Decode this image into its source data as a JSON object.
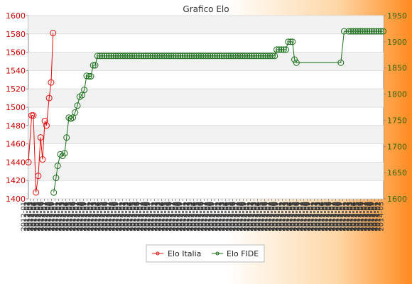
{
  "chart_data": {
    "type": "line",
    "title": "Grafico Elo",
    "legend_position": "bottom",
    "grid": true,
    "colors": {
      "italia": "#e01010",
      "fide": "#1a6e1a",
      "axis_left": "#cc0000",
      "axis_right": "#336600"
    },
    "y_left": {
      "min": 1400,
      "max": 1600,
      "ticks": [
        "1400",
        "1420",
        "1440",
        "1460",
        "1480",
        "1500",
        "1520",
        "1540",
        "1560",
        "1580",
        "1600"
      ]
    },
    "y_right": {
      "min": 1600,
      "max": 1950,
      "ticks": [
        "1600",
        "1650",
        "1700",
        "1750",
        "1800",
        "1850",
        "1900",
        "1950"
      ]
    },
    "x_tick_count": 100,
    "series": [
      {
        "name": "Elo Italia",
        "axis": "left",
        "points": [
          [
            0,
            1440
          ],
          [
            1,
            1491
          ],
          [
            1.5,
            1491
          ],
          [
            2.3,
            1407
          ],
          [
            3,
            1425
          ],
          [
            3.7,
            1467
          ],
          [
            4.3,
            1443
          ],
          [
            5,
            1485
          ],
          [
            5.5,
            1480
          ],
          [
            6.3,
            1510
          ],
          [
            6.9,
            1527
          ],
          [
            7.5,
            1581
          ]
        ]
      },
      {
        "name": "Elo FIDE",
        "axis": "right",
        "points": [
          [
            7.7,
            1612
          ],
          [
            8.4,
            1640
          ],
          [
            8.9,
            1663
          ],
          [
            9.7,
            1685
          ],
          [
            10.4,
            1682
          ],
          [
            11,
            1687
          ],
          [
            11.6,
            1717
          ],
          [
            12.3,
            1755
          ],
          [
            12.9,
            1753
          ],
          [
            13.5,
            1755
          ],
          [
            14.2,
            1765
          ],
          [
            14.9,
            1778
          ],
          [
            15.6,
            1795
          ],
          [
            16.3,
            1798
          ],
          [
            17,
            1808
          ],
          [
            17.7,
            1835
          ],
          [
            18.4,
            1834
          ],
          [
            19,
            1834
          ],
          [
            19.7,
            1855
          ],
          [
            20.3,
            1855
          ],
          [
            21,
            1873
          ]
        ],
        "flat_from": 21,
        "flat_to": 75,
        "flat_value": 1873,
        "tail": [
          [
            75.5,
            1885
          ],
          [
            76.2,
            1885
          ],
          [
            76.9,
            1885
          ],
          [
            77.6,
            1885
          ],
          [
            78.3,
            1885
          ],
          [
            79,
            1900
          ],
          [
            79.7,
            1900
          ],
          [
            80.3,
            1900
          ],
          [
            80.9,
            1866
          ],
          [
            81.5,
            1860
          ],
          [
            95,
            1860
          ],
          [
            96,
            1920
          ],
          [
            96.7,
            1920
          ],
          [
            108,
            1920
          ]
        ]
      }
    ]
  }
}
